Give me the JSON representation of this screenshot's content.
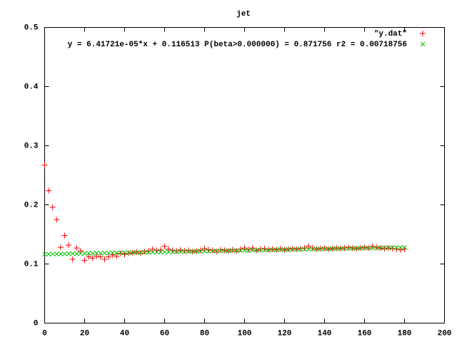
{
  "chart_data": {
    "type": "scatter",
    "title": "jet",
    "x": [
      0,
      2,
      4,
      6,
      8,
      10,
      12,
      14,
      16,
      18,
      20,
      22,
      24,
      26,
      28,
      30,
      32,
      34,
      36,
      38,
      40,
      42,
      44,
      46,
      48,
      50,
      52,
      54,
      56,
      58,
      60,
      62,
      64,
      66,
      68,
      70,
      72,
      74,
      76,
      78,
      80,
      82,
      84,
      86,
      88,
      90,
      92,
      94,
      96,
      98,
      100,
      102,
      104,
      106,
      108,
      110,
      112,
      114,
      116,
      118,
      120,
      122,
      124,
      126,
      128,
      130,
      132,
      134,
      136,
      138,
      140,
      142,
      144,
      146,
      148,
      150,
      152,
      154,
      156,
      158,
      160,
      162,
      164,
      166,
      168,
      170,
      172,
      174,
      176,
      178,
      180
    ],
    "series": [
      {
        "name": "\"y.dat\"",
        "color": "#ff0000",
        "marker": "plus",
        "values": [
          0.267,
          0.224,
          0.196,
          0.175,
          0.128,
          0.148,
          0.132,
          0.108,
          0.127,
          0.122,
          0.106,
          0.112,
          0.11,
          0.113,
          0.112,
          0.108,
          0.112,
          0.115,
          0.113,
          0.118,
          0.116,
          0.118,
          0.119,
          0.12,
          0.118,
          0.121,
          0.122,
          0.125,
          0.123,
          0.124,
          0.13,
          0.125,
          0.123,
          0.122,
          0.124,
          0.122,
          0.123,
          0.121,
          0.122,
          0.123,
          0.126,
          0.124,
          0.123,
          0.121,
          0.124,
          0.123,
          0.122,
          0.124,
          0.122,
          0.125,
          0.127,
          0.124,
          0.127,
          0.123,
          0.125,
          0.126,
          0.124,
          0.125,
          0.124,
          0.126,
          0.124,
          0.125,
          0.126,
          0.125,
          0.126,
          0.127,
          0.13,
          0.127,
          0.125,
          0.126,
          0.127,
          0.125,
          0.126,
          0.127,
          0.126,
          0.127,
          0.128,
          0.127,
          0.126,
          0.127,
          0.128,
          0.127,
          0.13,
          0.128,
          0.127,
          0.126,
          0.127,
          0.126,
          0.125,
          0.124,
          0.125
        ]
      },
      {
        "name": "y = 6.41721e-05*x + 0.116513 P(beta>0.000000) = 0.871756 r2 = 0.00718756",
        "color": "#00c000",
        "marker": "cross",
        "values": [
          0.1165,
          0.1166,
          0.1168,
          0.1169,
          0.117,
          0.1171,
          0.1173,
          0.1174,
          0.1175,
          0.1177,
          0.1178,
          0.1179,
          0.1181,
          0.1182,
          0.1183,
          0.1184,
          0.1186,
          0.1187,
          0.1188,
          0.119,
          0.1191,
          0.1192,
          0.1193,
          0.1195,
          0.1196,
          0.1197,
          0.1199,
          0.12,
          0.1201,
          0.1202,
          0.1204,
          0.1205,
          0.1206,
          0.1208,
          0.1209,
          0.121,
          0.1211,
          0.1213,
          0.1214,
          0.1215,
          0.1216,
          0.1218,
          0.1219,
          0.122,
          0.1222,
          0.1223,
          0.1224,
          0.1225,
          0.1227,
          0.1228,
          0.1229,
          0.1231,
          0.1232,
          0.1233,
          0.1234,
          0.1236,
          0.1237,
          0.1238,
          0.124,
          0.1241,
          0.1242,
          0.1243,
          0.1245,
          0.1246,
          0.1247,
          0.1249,
          0.125,
          0.1251,
          0.1252,
          0.1254,
          0.1255,
          0.1256,
          0.1258,
          0.1259,
          0.126,
          0.1261,
          0.1263,
          0.1264,
          0.1265,
          0.1266,
          0.1268,
          0.1269,
          0.127,
          0.1272,
          0.1273,
          0.1274,
          0.1275,
          0.1277,
          0.1278,
          0.1279,
          0.1281
        ]
      }
    ],
    "xlim": [
      0,
      200
    ],
    "xticks": [
      0,
      20,
      40,
      60,
      80,
      100,
      120,
      140,
      160,
      180,
      200
    ],
    "ylim": [
      0,
      0.5
    ],
    "yticks": [
      0,
      0.1,
      0.2,
      0.3,
      0.4,
      0.5
    ],
    "legend": "top-right"
  }
}
